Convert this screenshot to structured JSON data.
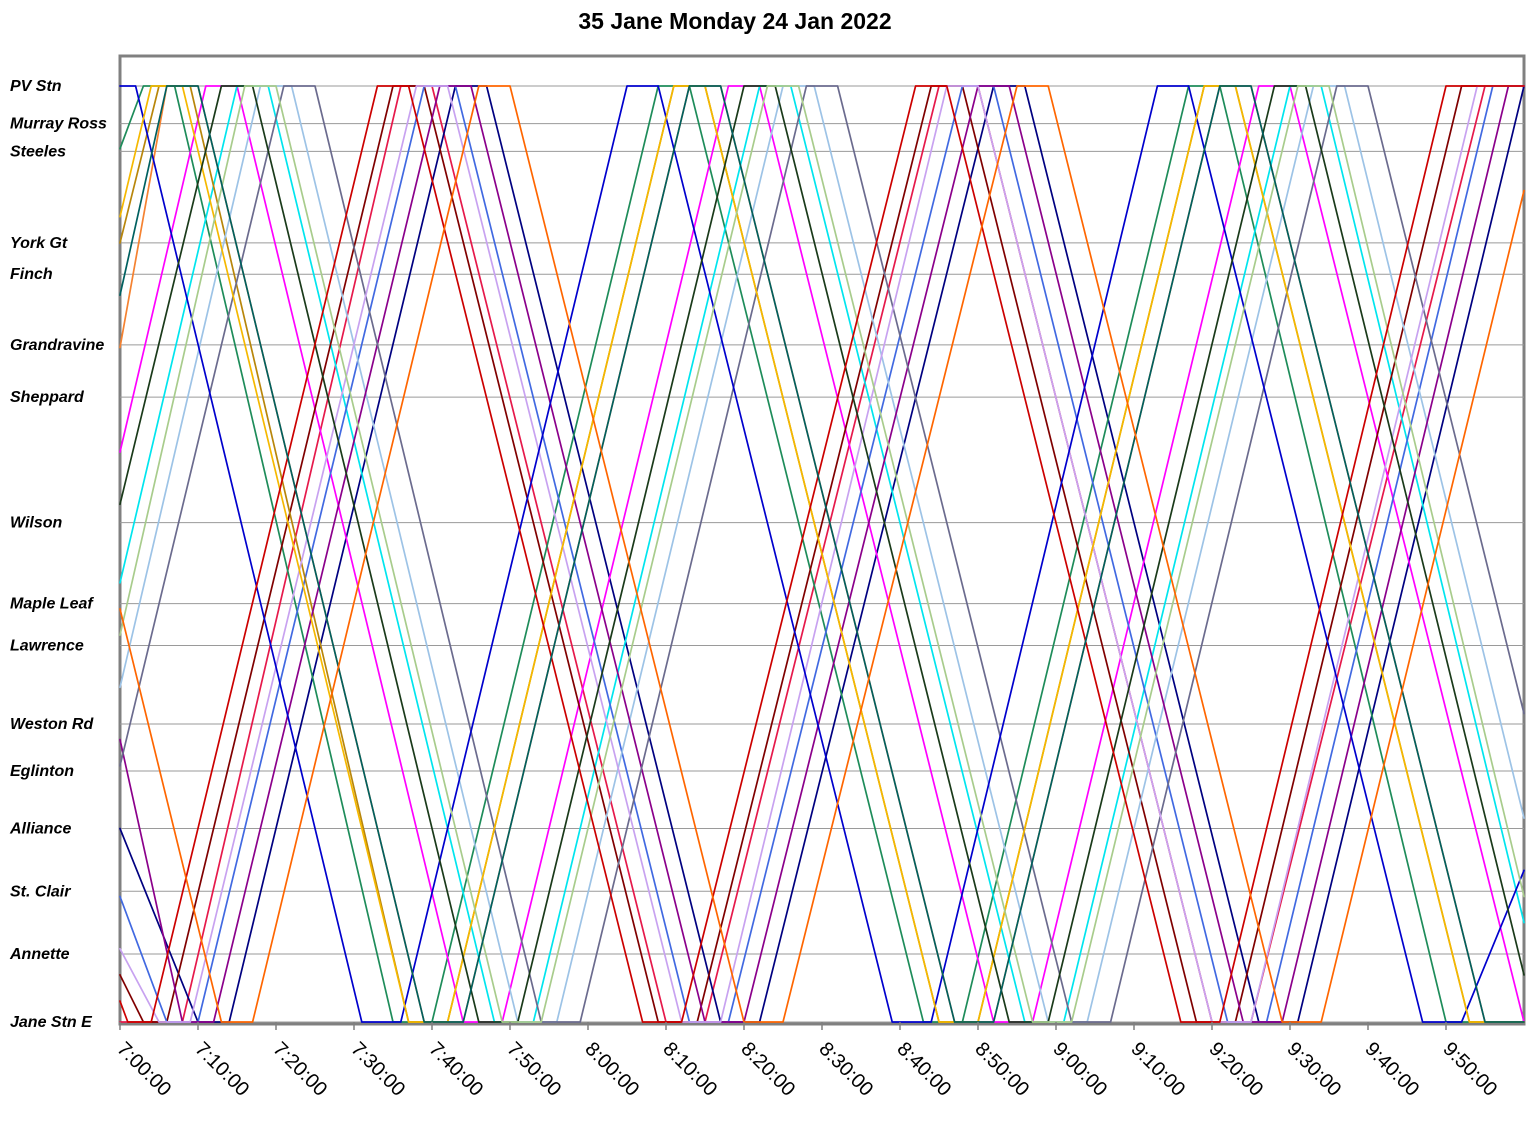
{
  "chart_data": {
    "type": "line",
    "title": "35 Jane Monday 24 Jan 2022",
    "xlabel": "",
    "ylabel": "",
    "x_range": [
      "7:00:00",
      "10:00:00"
    ],
    "x_ticks": [
      "7:00:00",
      "7:10:00",
      "7:20:00",
      "7:30:00",
      "7:40:00",
      "7:50:00",
      "8:00:00",
      "8:10:00",
      "8:20:00",
      "8:30:00",
      "8:40:00",
      "8:50:00",
      "9:00:00",
      "9:10:00",
      "9:20:00",
      "9:30:00",
      "9:40:00",
      "9:50:00"
    ],
    "y_axis": "stops (northbound up)",
    "stops": [
      {
        "label": "PV Stn",
        "pos": 0
      },
      {
        "label": "Murray Ross",
        "pos": 0.72
      },
      {
        "label": "Steeles",
        "pos": 1.25
      },
      {
        "label": "York Gt",
        "pos": 3.0
      },
      {
        "label": "Finch",
        "pos": 3.6
      },
      {
        "label": "Grandravine",
        "pos": 4.95
      },
      {
        "label": "Sheppard",
        "pos": 5.95
      },
      {
        "label": "Wilson",
        "pos": 8.35
      },
      {
        "label": "Maple Leaf",
        "pos": 9.9
      },
      {
        "label": "Lawrence",
        "pos": 10.7
      },
      {
        "label": "Weston Rd",
        "pos": 12.2
      },
      {
        "label": "Eglinton",
        "pos": 13.1
      },
      {
        "label": "Alliance",
        "pos": 14.2
      },
      {
        "label": "St. Clair",
        "pos": 15.4
      },
      {
        "label": "Annette",
        "pos": 16.6
      },
      {
        "label": "Jane Stn E",
        "pos": 17.9
      }
    ],
    "grid": true,
    "legend": "none",
    "series_colors": [
      "#e6194b",
      "#000080",
      "#1e8c5a",
      "#f58231",
      "#ff00ff",
      "#00e5ee",
      "#800000",
      "#4169e1",
      "#b8860b",
      "#9dc3e6",
      "#8b008b",
      "#6b6b8e",
      "#c8a2f0",
      "#0000cd",
      "#f5b800",
      "#1a3a1a",
      "#a8cc8c",
      "#cc0000",
      "#006060",
      "#ff6600"
    ],
    "series": [
      {
        "points": [
          [
            "7:00:00",
            17.9
          ],
          [
            "7:08:00",
            17.9
          ],
          [
            "7:36:00",
            0.0
          ],
          [
            "7:40:00",
            0.0
          ],
          [
            "8:10:00",
            17.9
          ],
          [
            "8:15:00",
            17.9
          ],
          [
            "8:45:00",
            0.0
          ],
          [
            "8:50:00",
            0.0
          ],
          [
            "9:20:00",
            17.9
          ],
          [
            "9:25:00",
            17.9
          ],
          [
            "9:55:00",
            0.0
          ],
          [
            "10:00:00",
            0.0
          ]
        ]
      },
      {
        "points": [
          [
            "7:00:00",
            14.2
          ],
          [
            "7:10:00",
            17.9
          ],
          [
            "7:14:00",
            17.9
          ],
          [
            "7:43:00",
            0.0
          ],
          [
            "7:47:00",
            0.0
          ],
          [
            "8:17:00",
            17.9
          ],
          [
            "8:22:00",
            17.9
          ],
          [
            "8:52:00",
            0.0
          ],
          [
            "8:56:00",
            0.0
          ],
          [
            "9:26:00",
            17.9
          ],
          [
            "9:31:00",
            17.9
          ],
          [
            "10:00:00",
            0.0
          ]
        ]
      },
      {
        "points": [
          [
            "7:00:00",
            1.2
          ],
          [
            "7:03:00",
            0.0
          ],
          [
            "7:07:00",
            0.0
          ],
          [
            "7:35:00",
            17.9
          ],
          [
            "7:40:00",
            17.9
          ],
          [
            "8:09:00",
            0.0
          ],
          [
            "8:13:00",
            0.0
          ],
          [
            "8:43:00",
            17.9
          ],
          [
            "8:48:00",
            17.9
          ],
          [
            "9:17:00",
            0.0
          ],
          [
            "9:21:00",
            0.0
          ],
          [
            "9:50:00",
            17.9
          ],
          [
            "10:00:00",
            17.9
          ]
        ]
      },
      {
        "points": [
          [
            "7:00:00",
            5.0
          ],
          [
            "7:06:00",
            0.0
          ],
          [
            "7:10:00",
            0.0
          ],
          [
            "7:39:00",
            17.9
          ],
          [
            "7:44:00",
            17.9
          ],
          [
            "8:13:00",
            0.0
          ],
          [
            "8:17:00",
            0.0
          ],
          [
            "8:47:00",
            17.9
          ],
          [
            "8:52:00",
            17.9
          ],
          [
            "9:21:00",
            0.0
          ],
          [
            "9:25:00",
            0.0
          ],
          [
            "9:55:00",
            17.9
          ],
          [
            "10:00:00",
            17.9
          ]
        ]
      },
      {
        "points": [
          [
            "7:00:00",
            7.0
          ],
          [
            "7:11:00",
            0.0
          ],
          [
            "7:15:00",
            0.0
          ],
          [
            "7:44:00",
            17.9
          ],
          [
            "7:49:00",
            17.9
          ],
          [
            "8:18:00",
            0.0
          ],
          [
            "8:22:00",
            0.0
          ],
          [
            "8:52:00",
            17.9
          ],
          [
            "8:57:00",
            17.9
          ],
          [
            "9:26:00",
            0.0
          ],
          [
            "9:30:00",
            0.0
          ],
          [
            "10:00:00",
            17.9
          ]
        ]
      },
      {
        "points": [
          [
            "7:00:00",
            9.5
          ],
          [
            "7:15:00",
            0.0
          ],
          [
            "7:19:00",
            0.0
          ],
          [
            "7:48:00",
            17.9
          ],
          [
            "7:53:00",
            17.9
          ],
          [
            "8:22:00",
            0.0
          ],
          [
            "8:26:00",
            0.0
          ],
          [
            "8:56:00",
            17.9
          ],
          [
            "9:01:00",
            17.9
          ],
          [
            "9:30:00",
            0.0
          ],
          [
            "9:34:00",
            0.0
          ],
          [
            "10:00:00",
            16.0
          ]
        ]
      },
      {
        "points": [
          [
            "7:00:00",
            17.0
          ],
          [
            "7:03:00",
            17.9
          ],
          [
            "7:06:00",
            17.9
          ],
          [
            "7:35:00",
            0.0
          ],
          [
            "7:39:00",
            0.0
          ],
          [
            "8:09:00",
            17.9
          ],
          [
            "8:14:00",
            17.9
          ],
          [
            "8:44:00",
            0.0
          ],
          [
            "8:48:00",
            0.0
          ],
          [
            "9:18:00",
            17.9
          ],
          [
            "9:23:00",
            17.9
          ],
          [
            "9:52:00",
            0.0
          ],
          [
            "10:00:00",
            0.0
          ]
        ]
      },
      {
        "points": [
          [
            "7:00:00",
            15.5
          ],
          [
            "7:06:00",
            17.9
          ],
          [
            "7:10:00",
            17.9
          ],
          [
            "7:39:00",
            0.0
          ],
          [
            "7:43:00",
            0.0
          ],
          [
            "8:13:00",
            17.9
          ],
          [
            "8:18:00",
            17.9
          ],
          [
            "8:48:00",
            0.0
          ],
          [
            "8:52:00",
            0.0
          ],
          [
            "9:22:00",
            17.9
          ],
          [
            "9:27:00",
            17.9
          ],
          [
            "9:56:00",
            0.0
          ],
          [
            "10:00:00",
            0.0
          ]
        ]
      },
      {
        "points": [
          [
            "7:00:00",
            3.0
          ],
          [
            "7:05:00",
            0.0
          ],
          [
            "7:09:00",
            0.0
          ],
          [
            "7:37:00",
            17.9
          ],
          [
            "7:42:00",
            17.9
          ],
          [
            "8:11:00",
            0.0
          ],
          [
            "8:15:00",
            0.0
          ],
          [
            "8:45:00",
            17.9
          ],
          [
            "8:50:00",
            17.9
          ],
          [
            "9:19:00",
            0.0
          ],
          [
            "9:23:00",
            0.0
          ],
          [
            "9:53:00",
            17.9
          ],
          [
            "10:00:00",
            17.9
          ]
        ]
      },
      {
        "points": [
          [
            "7:00:00",
            11.5
          ],
          [
            "7:18:00",
            0.0
          ],
          [
            "7:22:00",
            0.0
          ],
          [
            "7:51:00",
            17.9
          ],
          [
            "7:56:00",
            17.9
          ],
          [
            "8:25:00",
            0.0
          ],
          [
            "8:29:00",
            0.0
          ],
          [
            "8:59:00",
            17.9
          ],
          [
            "9:04:00",
            17.9
          ],
          [
            "9:33:00",
            0.0
          ],
          [
            "9:37:00",
            0.0
          ],
          [
            "10:00:00",
            14.0
          ]
        ]
      },
      {
        "points": [
          [
            "7:00:00",
            12.5
          ],
          [
            "7:08:00",
            17.9
          ],
          [
            "7:12:00",
            17.9
          ],
          [
            "7:41:00",
            0.0
          ],
          [
            "7:45:00",
            0.0
          ],
          [
            "8:15:00",
            17.9
          ],
          [
            "8:20:00",
            17.9
          ],
          [
            "8:50:00",
            0.0
          ],
          [
            "8:54:00",
            0.0
          ],
          [
            "9:24:00",
            17.9
          ],
          [
            "9:29:00",
            17.9
          ],
          [
            "9:58:00",
            0.0
          ],
          [
            "10:00:00",
            0.0
          ]
        ]
      },
      {
        "points": [
          [
            "7:00:00",
            13.0
          ],
          [
            "7:21:00",
            0.0
          ],
          [
            "7:25:00",
            0.0
          ],
          [
            "7:54:00",
            17.9
          ],
          [
            "7:59:00",
            17.9
          ],
          [
            "8:28:00",
            0.0
          ],
          [
            "8:32:00",
            0.0
          ],
          [
            "9:02:00",
            17.9
          ],
          [
            "9:07:00",
            17.9
          ],
          [
            "9:36:00",
            0.0
          ],
          [
            "9:40:00",
            0.0
          ],
          [
            "10:00:00",
            12.0
          ]
        ]
      },
      {
        "points": [
          [
            "7:00:00",
            16.5
          ],
          [
            "7:05:00",
            17.9
          ],
          [
            "7:09:00",
            17.9
          ],
          [
            "7:38:00",
            0.0
          ],
          [
            "7:42:00",
            0.0
          ],
          [
            "8:12:00",
            17.9
          ],
          [
            "8:17:00",
            17.9
          ],
          [
            "8:46:00",
            0.0
          ],
          [
            "8:50:00",
            0.0
          ],
          [
            "9:20:00",
            17.9
          ],
          [
            "9:25:00",
            17.9
          ],
          [
            "9:54:00",
            0.0
          ],
          [
            "10:00:00",
            0.0
          ]
        ]
      },
      {
        "points": [
          [
            "7:00:00",
            0.0
          ],
          [
            "7:02:00",
            0.0
          ],
          [
            "7:31:00",
            17.9
          ],
          [
            "7:36:00",
            17.9
          ],
          [
            "8:05:00",
            0.0
          ],
          [
            "8:09:00",
            0.0
          ],
          [
            "8:39:00",
            17.9
          ],
          [
            "8:44:00",
            17.9
          ],
          [
            "9:13:00",
            0.0
          ],
          [
            "9:17:00",
            0.0
          ],
          [
            "9:47:00",
            17.9
          ],
          [
            "9:52:00",
            17.9
          ],
          [
            "10:00:00",
            15.0
          ]
        ]
      },
      {
        "points": [
          [
            "7:00:00",
            2.5
          ],
          [
            "7:04:00",
            0.0
          ],
          [
            "7:08:00",
            0.0
          ],
          [
            "7:37:00",
            17.9
          ],
          [
            "7:42:00",
            17.9
          ],
          [
            "8:11:00",
            0.0
          ],
          [
            "8:15:00",
            0.0
          ],
          [
            "8:45:00",
            17.9
          ],
          [
            "8:50:00",
            17.9
          ],
          [
            "9:19:00",
            0.0
          ],
          [
            "9:23:00",
            0.0
          ],
          [
            "9:53:00",
            17.9
          ],
          [
            "10:00:00",
            17.9
          ]
        ]
      },
      {
        "points": [
          [
            "7:00:00",
            8.0
          ],
          [
            "7:13:00",
            0.0
          ],
          [
            "7:17:00",
            0.0
          ],
          [
            "7:46:00",
            17.9
          ],
          [
            "7:51:00",
            17.9
          ],
          [
            "8:20:00",
            0.0
          ],
          [
            "8:24:00",
            0.0
          ],
          [
            "8:54:00",
            17.9
          ],
          [
            "8:59:00",
            17.9
          ],
          [
            "9:28:00",
            0.0
          ],
          [
            "9:32:00",
            0.0
          ],
          [
            "10:00:00",
            17.0
          ]
        ]
      },
      {
        "points": [
          [
            "7:00:00",
            10.5
          ],
          [
            "7:16:00",
            0.0
          ],
          [
            "7:20:00",
            0.0
          ],
          [
            "7:49:00",
            17.9
          ],
          [
            "7:54:00",
            17.9
          ],
          [
            "8:23:00",
            0.0
          ],
          [
            "8:27:00",
            0.0
          ],
          [
            "8:57:00",
            17.9
          ],
          [
            "9:02:00",
            17.9
          ],
          [
            "9:31:00",
            0.0
          ],
          [
            "9:35:00",
            0.0
          ],
          [
            "10:00:00",
            15.5
          ]
        ]
      },
      {
        "points": [
          [
            "7:00:00",
            17.5
          ],
          [
            "7:01:00",
            17.9
          ],
          [
            "7:04:00",
            17.9
          ],
          [
            "7:33:00",
            0.0
          ],
          [
            "7:37:00",
            0.0
          ],
          [
            "8:07:00",
            17.9
          ],
          [
            "8:12:00",
            17.9
          ],
          [
            "8:42:00",
            0.0
          ],
          [
            "8:46:00",
            0.0
          ],
          [
            "9:16:00",
            17.9
          ],
          [
            "9:21:00",
            17.9
          ],
          [
            "9:50:00",
            0.0
          ],
          [
            "10:00:00",
            0.0
          ]
        ]
      },
      {
        "points": [
          [
            "7:00:00",
            4.0
          ],
          [
            "7:06:00",
            0.0
          ],
          [
            "7:10:00",
            0.0
          ],
          [
            "7:39:00",
            17.9
          ],
          [
            "7:44:00",
            17.9
          ],
          [
            "8:13:00",
            0.0
          ],
          [
            "8:17:00",
            0.0
          ],
          [
            "8:47:00",
            17.9
          ],
          [
            "8:52:00",
            17.9
          ],
          [
            "9:21:00",
            0.0
          ],
          [
            "9:25:00",
            0.0
          ],
          [
            "9:55:00",
            17.9
          ],
          [
            "10:00:00",
            17.9
          ]
        ]
      },
      {
        "points": [
          [
            "7:00:00",
            10.0
          ],
          [
            "7:13:00",
            17.9
          ],
          [
            "7:17:00",
            17.9
          ],
          [
            "7:46:00",
            0.0
          ],
          [
            "7:50:00",
            0.0
          ],
          [
            "8:20:00",
            17.9
          ],
          [
            "8:25:00",
            17.9
          ],
          [
            "8:55:00",
            0.0
          ],
          [
            "8:59:00",
            0.0
          ],
          [
            "9:29:00",
            17.9
          ],
          [
            "9:34:00",
            17.9
          ],
          [
            "10:00:00",
            2.0
          ]
        ]
      }
    ]
  }
}
